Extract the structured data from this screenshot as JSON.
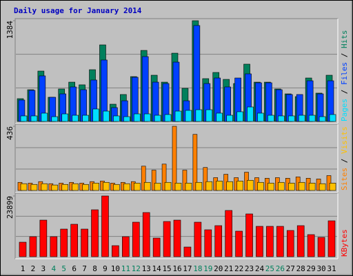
{
  "chart_data": {
    "type": "bar",
    "title": "Daily usage for January 2014",
    "categories": [
      "1",
      "2",
      "3",
      "4",
      "5",
      "6",
      "7",
      "8",
      "9",
      "10",
      "11",
      "12",
      "13",
      "14",
      "15",
      "16",
      "17",
      "18",
      "19",
      "20",
      "21",
      "22",
      "23",
      "24",
      "25",
      "26",
      "27",
      "28",
      "29",
      "30",
      "31"
    ],
    "category_colors": [
      "#000000",
      "#000000",
      "#000000",
      "#00805c",
      "#00805c",
      "#000000",
      "#000000",
      "#000000",
      "#000000",
      "#000000",
      "#00805c",
      "#00805c",
      "#000000",
      "#000000",
      "#000000",
      "#000000",
      "#000000",
      "#00805c",
      "#00805c",
      "#000000",
      "#000000",
      "#000000",
      "#000000",
      "#000000",
      "#00805c",
      "#00805c",
      "#000000",
      "#000000",
      "#000000",
      "#000000",
      "#000000"
    ],
    "legend_separator": " / ",
    "panels": [
      {
        "ylim": [
          0,
          1384
        ],
        "yticks": [
          1384
        ],
        "series": [
          {
            "name": "Hits",
            "color": "#00805c",
            "values": [
              313,
              436,
              692,
              332,
              446,
              540,
              503,
              711,
              1052,
              237,
              370,
              616,
              976,
              635,
              540,
              938,
              455,
              1384,
              588,
              673,
              578,
              521,
              787,
              540,
              540,
              446,
              379,
              341,
              597,
              389,
              635
            ]
          },
          {
            "name": "Files",
            "color": "#0040ff",
            "values": [
              294,
              427,
              626,
              332,
              379,
              474,
              436,
              569,
              844,
              190,
              284,
              607,
              891,
              540,
              521,
              815,
              284,
              1318,
              521,
              597,
              474,
              597,
              654,
              531,
              531,
              436,
              370,
              370,
              559,
              379,
              559
            ]
          },
          {
            "name": "Pages",
            "color": "#00e0ff",
            "values": [
              76,
              76,
              114,
              66,
              104,
              85,
              85,
              171,
              142,
              76,
              66,
              104,
              104,
              85,
              95,
              142,
              152,
              161,
              161,
              114,
              85,
              133,
              199,
              114,
              85,
              76,
              76,
              85,
              85,
              66,
              95
            ]
          }
        ],
        "legend_order": [
          2,
          1,
          0
        ]
      },
      {
        "ylim": [
          0,
          436
        ],
        "yticks": [
          436
        ],
        "series": [
          {
            "name": "Sites",
            "color": "#ff8000",
            "values": [
              55,
              50,
              60,
              46,
              50,
              55,
              50,
              60,
              64,
              50,
              55,
              60,
              165,
              138,
              179,
              436,
              138,
              381,
              156,
              87,
              110,
              87,
              124,
              87,
              83,
              87,
              83,
              92,
              83,
              78,
              101
            ]
          },
          {
            "name": "Visits",
            "color": "#ffc000",
            "values": [
              46,
              41,
              46,
              37,
              41,
              46,
              41,
              50,
              55,
              41,
              46,
              50,
              55,
              50,
              55,
              50,
              50,
              55,
              60,
              64,
              60,
              64,
              69,
              55,
              50,
              55,
              50,
              55,
              50,
              46,
              50
            ]
          }
        ],
        "legend_order": [
          0,
          1
        ]
      },
      {
        "ylim": [
          0,
          23899
        ],
        "yticks": [
          23899
        ],
        "series": [
          {
            "name": "KBytes",
            "color": "#ff0000",
            "values": [
              5703,
              7876,
              14394,
              7876,
              10864,
              12765,
              10864,
              18468,
              23899,
              4345,
              7876,
              13580,
              17381,
              7333,
              13851,
              14394,
              3802,
              13580,
              10592,
              12222,
              18196,
              10049,
              16838,
              11950,
              11950,
              11950,
              10320,
              12222,
              8690,
              7605,
              14122
            ]
          }
        ],
        "legend_order": [
          0
        ]
      }
    ]
  }
}
